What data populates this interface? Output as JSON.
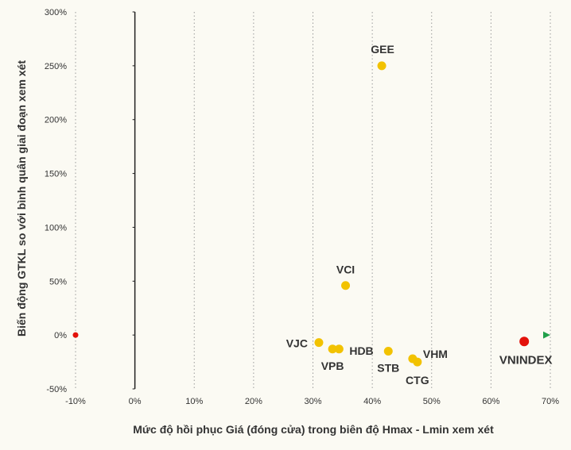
{
  "chart_data": {
    "type": "scatter",
    "title": "",
    "xlabel": "Mức độ hồi phục Giá (đóng cửa) trong biên độ Hmax - Lmin  xem xét",
    "ylabel": "Biến động GTKL so với bình quân giai đoạn xem xét",
    "xlim": [
      -10,
      70
    ],
    "ylim": [
      -50,
      300
    ],
    "x_ticks": [
      -10,
      0,
      10,
      20,
      30,
      40,
      50,
      60,
      70
    ],
    "y_ticks": [
      -50,
      0,
      50,
      100,
      150,
      200,
      250,
      300
    ],
    "x_tick_labels": [
      "-10%",
      "0%",
      "10%",
      "20%",
      "30%",
      "40%",
      "50%",
      "60%",
      "70%"
    ],
    "y_tick_labels": [
      "-50%",
      "0%",
      "50%",
      "100%",
      "150%",
      "200%",
      "250%",
      "300%"
    ],
    "grid": {
      "vertical_dotted": true,
      "horizontal": false
    },
    "points": [
      {
        "label": "GEE",
        "x": 41.6,
        "y": 250,
        "color": "#f2c200"
      },
      {
        "label": "VCI",
        "x": 35.5,
        "y": 46,
        "color": "#f2c200"
      },
      {
        "label": "VJC",
        "x": 31.0,
        "y": -7,
        "color": "#f2c200"
      },
      {
        "label": "VPB",
        "x": 33.3,
        "y": -13,
        "color": "#f2c200",
        "hidden_label": true
      },
      {
        "label": "HDB",
        "x": 34.4,
        "y": -13,
        "color": "#f2c200"
      },
      {
        "label": "STB",
        "x": 42.7,
        "y": -15,
        "color": "#f2c200"
      },
      {
        "label": "VHM",
        "x": 46.8,
        "y": -22,
        "color": "#f2c200"
      },
      {
        "label": "CTG",
        "x": 47.6,
        "y": -25,
        "color": "#f2c200"
      },
      {
        "label": "VNINDEX",
        "x": 65.6,
        "y": -6,
        "color": "#e3120b"
      }
    ],
    "arrow": {
      "from_x": -10,
      "to_x": 70,
      "y": 0,
      "start_color": "#e3120b",
      "mid_color": "#e8c40a",
      "end_color": "#21a04a"
    },
    "highlight_label_color": "#21a04a"
  }
}
